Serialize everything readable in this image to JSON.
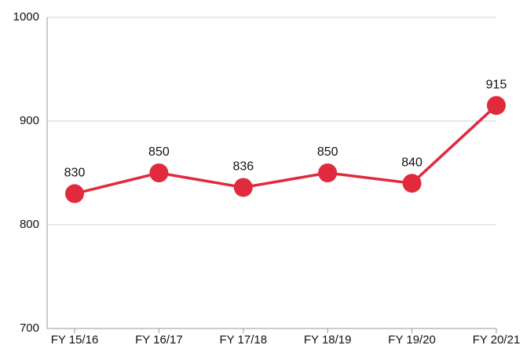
{
  "chart_data": {
    "type": "line",
    "categories": [
      "FY 15/16",
      "FY 16/17",
      "FY 17/18",
      "FY 18/19",
      "FY 19/20",
      "FY 20/21"
    ],
    "series": [
      {
        "name": null,
        "color": "#e12a3c",
        "values": [
          830,
          850,
          836,
          850,
          840,
          915
        ]
      }
    ],
    "ylim": [
      700,
      1000
    ],
    "yticks": [
      700,
      800,
      900,
      1000
    ],
    "grid": true
  }
}
